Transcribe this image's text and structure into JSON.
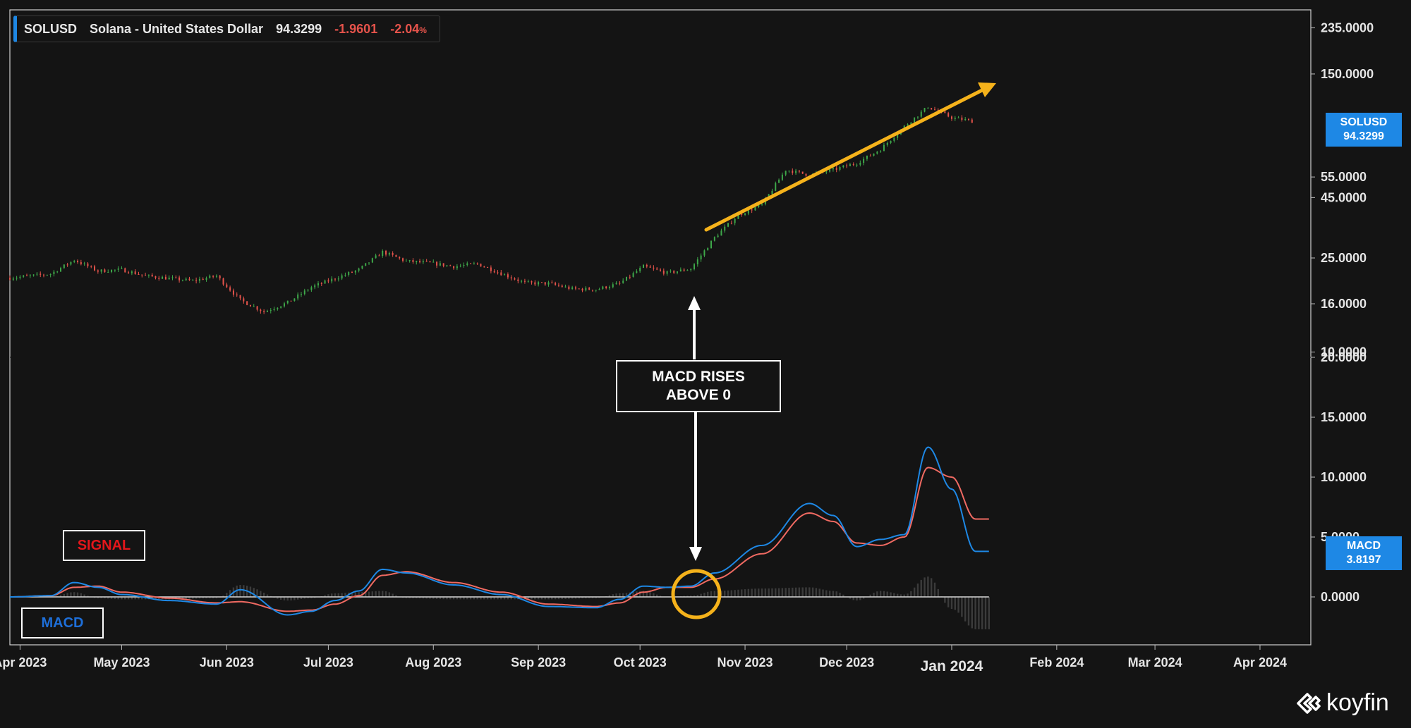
{
  "legend": {
    "symbol": "SOLUSD",
    "name": "Solana - United States Dollar",
    "price": "94.3299",
    "change": "-1.9601",
    "change_pct": "-2.04",
    "pct_sign": "%"
  },
  "price_tag": {
    "symbol": "SOLUSD",
    "value": "94.3299"
  },
  "macd_tag": {
    "name": "MACD",
    "value": "3.8197"
  },
  "annotations": {
    "note": [
      "MACD RISES",
      "ABOVE 0"
    ],
    "signal_label": "SIGNAL",
    "macd_label": "MACD"
  },
  "brand": {
    "name": "koyfin"
  },
  "colors": {
    "background": "#141414",
    "up": "#3ea84a",
    "down": "#e5534b",
    "macd": "#1e88e5",
    "signal": "#f06a62",
    "histogram": "#3b3b3b",
    "trend_arrow": "#f5b21b",
    "annotation": "#ffffff"
  },
  "chart_data": [
    {
      "type": "candlestick",
      "title": "SOLUSD",
      "y_scale": "log",
      "y_ticks": [
        "235.0000",
        "150.0000",
        "55.0000",
        "45.0000",
        "25.0000",
        "16.0000",
        "10.0000"
      ],
      "x_ticks": [
        "Apr 2023",
        "May 2023",
        "Jun 2023",
        "Jul 2023",
        "Aug 2023",
        "Sep 2023",
        "Oct 2023",
        "Nov 2023",
        "Dec 2023",
        "Jan 2024",
        "Feb 2024",
        "Mar 2024",
        "Apr 2024"
      ],
      "x_range": [
        "2023-03-29",
        "2024-04-16"
      ],
      "y_range": [
        9.5,
        280
      ],
      "weekly_close": [
        [
          "2023-04-03",
          20.9
        ],
        [
          "2023-04-10",
          21.4
        ],
        [
          "2023-04-17",
          24.5
        ],
        [
          "2023-04-24",
          22.0
        ],
        [
          "2023-05-01",
          22.3
        ],
        [
          "2023-05-08",
          21.0
        ],
        [
          "2023-05-15",
          20.5
        ],
        [
          "2023-05-22",
          20.0
        ],
        [
          "2023-05-29",
          21.0
        ],
        [
          "2023-06-05",
          16.6
        ],
        [
          "2023-06-12",
          14.8
        ],
        [
          "2023-06-19",
          16.2
        ],
        [
          "2023-06-26",
          18.8
        ],
        [
          "2023-07-03",
          20.5
        ],
        [
          "2023-07-10",
          22.3
        ],
        [
          "2023-07-17",
          26.5
        ],
        [
          "2023-07-24",
          24.2
        ],
        [
          "2023-07-31",
          23.8
        ],
        [
          "2023-08-07",
          23.0
        ],
        [
          "2023-08-14",
          23.6
        ],
        [
          "2023-08-21",
          21.5
        ],
        [
          "2023-08-28",
          19.6
        ],
        [
          "2023-09-04",
          19.5
        ],
        [
          "2023-09-11",
          18.5
        ],
        [
          "2023-09-18",
          18.4
        ],
        [
          "2023-09-25",
          19.5
        ],
        [
          "2023-10-02",
          23.0
        ],
        [
          "2023-10-09",
          21.6
        ],
        [
          "2023-10-16",
          22.5
        ],
        [
          "2023-10-23",
          30.5
        ],
        [
          "2023-10-30",
          38.0
        ],
        [
          "2023-11-06",
          42.0
        ],
        [
          "2023-11-13",
          59.0
        ],
        [
          "2023-11-20",
          56.0
        ],
        [
          "2023-11-27",
          59.0
        ],
        [
          "2023-12-04",
          63.0
        ],
        [
          "2023-12-11",
          72.0
        ],
        [
          "2023-12-18",
          90.0
        ],
        [
          "2023-12-25",
          109.0
        ],
        [
          "2024-01-01",
          98.0
        ],
        [
          "2024-01-08",
          94.3
        ]
      ]
    },
    {
      "type": "line",
      "title": "MACD",
      "y_ticks": [
        "20.0000",
        "15.0000",
        "10.0000",
        "5.0000",
        "0.0000"
      ],
      "y_range": [
        -4,
        20
      ],
      "series": [
        {
          "name": "MACD",
          "values": [
            [
              "2023-03-29",
              0
            ],
            [
              "2023-04-10",
              0.1
            ],
            [
              "2023-04-17",
              1.2
            ],
            [
              "2023-04-24",
              0.8
            ],
            [
              "2023-05-01",
              0.2
            ],
            [
              "2023-05-15",
              -0.3
            ],
            [
              "2023-05-29",
              -0.6
            ],
            [
              "2023-06-05",
              0.6
            ],
            [
              "2023-06-19",
              -1.5
            ],
            [
              "2023-06-26",
              -1.2
            ],
            [
              "2023-07-03",
              -0.3
            ],
            [
              "2023-07-10",
              0.5
            ],
            [
              "2023-07-17",
              2.3
            ],
            [
              "2023-07-24",
              2.0
            ],
            [
              "2023-08-07",
              1.0
            ],
            [
              "2023-08-21",
              0.2
            ],
            [
              "2023-09-04",
              -0.8
            ],
            [
              "2023-09-18",
              -0.9
            ],
            [
              "2023-09-25",
              -0.2
            ],
            [
              "2023-10-02",
              0.9
            ],
            [
              "2023-10-09",
              0.8
            ],
            [
              "2023-10-16",
              0.9
            ],
            [
              "2023-10-23",
              2.0
            ],
            [
              "2023-11-06",
              4.3
            ],
            [
              "2023-11-20",
              7.8
            ],
            [
              "2023-11-27",
              6.8
            ],
            [
              "2023-12-04",
              4.2
            ],
            [
              "2023-12-11",
              4.8
            ],
            [
              "2023-12-18",
              5.2
            ],
            [
              "2023-12-25",
              12.5
            ],
            [
              "2024-01-01",
              9.0
            ],
            [
              "2024-01-08",
              3.8
            ]
          ]
        },
        {
          "name": "SIGNAL",
          "values": [
            [
              "2023-03-29",
              0
            ],
            [
              "2023-04-10",
              0.1
            ],
            [
              "2023-04-17",
              0.8
            ],
            [
              "2023-04-24",
              0.9
            ],
            [
              "2023-05-01",
              0.4
            ],
            [
              "2023-05-15",
              -0.1
            ],
            [
              "2023-05-29",
              -0.5
            ],
            [
              "2023-06-05",
              -0.4
            ],
            [
              "2023-06-19",
              -1.2
            ],
            [
              "2023-06-26",
              -1.1
            ],
            [
              "2023-07-03",
              -0.6
            ],
            [
              "2023-07-10",
              0.1
            ],
            [
              "2023-07-17",
              1.8
            ],
            [
              "2023-07-24",
              2.1
            ],
            [
              "2023-08-07",
              1.2
            ],
            [
              "2023-08-21",
              0.4
            ],
            [
              "2023-09-04",
              -0.6
            ],
            [
              "2023-09-18",
              -0.8
            ],
            [
              "2023-09-25",
              -0.5
            ],
            [
              "2023-10-02",
              0.4
            ],
            [
              "2023-10-09",
              0.8
            ],
            [
              "2023-10-16",
              0.8
            ],
            [
              "2023-10-23",
              1.5
            ],
            [
              "2023-11-06",
              3.6
            ],
            [
              "2023-11-20",
              7.0
            ],
            [
              "2023-11-27",
              6.3
            ],
            [
              "2023-12-04",
              4.5
            ],
            [
              "2023-12-11",
              4.3
            ],
            [
              "2023-12-18",
              5.0
            ],
            [
              "2023-12-25",
              10.8
            ],
            [
              "2024-01-01",
              10.0
            ],
            [
              "2024-01-08",
              6.5
            ]
          ]
        }
      ],
      "histogram": "MACD - SIGNAL"
    }
  ]
}
